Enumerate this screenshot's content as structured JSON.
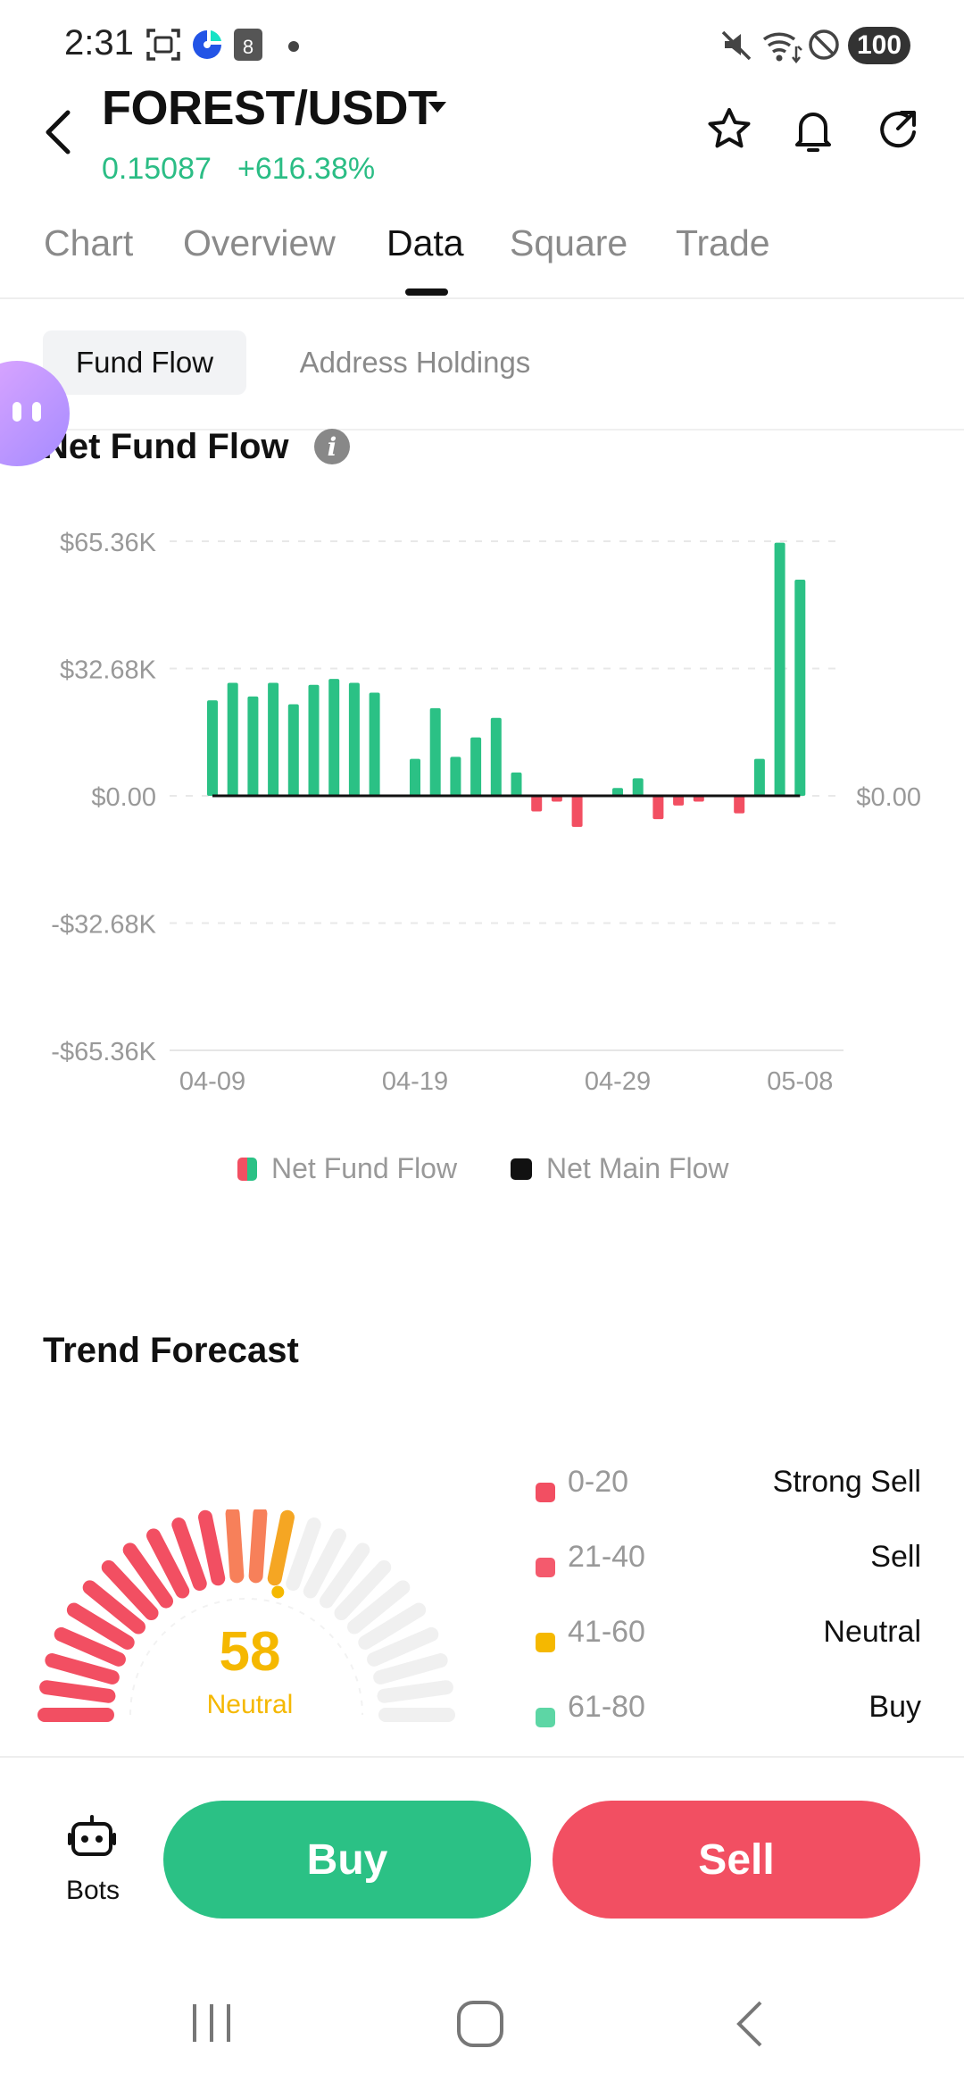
{
  "status_bar": {
    "time": "2:31",
    "battery": "100",
    "calendar_badge": "8"
  },
  "header": {
    "pair": "FOREST/USDT",
    "price": "0.15087",
    "change": "+616.38%"
  },
  "tabs": [
    {
      "label": "Chart"
    },
    {
      "label": "Overview"
    },
    {
      "label": "Data",
      "active": true
    },
    {
      "label": "Square"
    },
    {
      "label": "Trade"
    }
  ],
  "subtabs": [
    {
      "label": "Fund Flow",
      "active": true
    },
    {
      "label": "Address Holdings"
    }
  ],
  "net_fund_flow": {
    "title": "Net Fund Flow",
    "info_glyph": "i"
  },
  "chart_data": {
    "type": "bar",
    "ylim": [
      -65360,
      65360
    ],
    "y_ticks": [
      "$65.36K",
      "$32.68K",
      "$0.00",
      "-$32.68K",
      "-$65.36K"
    ],
    "right_tick": "$0.00",
    "x_ticks": [
      "04-09",
      "04-19",
      "04-29",
      "05-08"
    ],
    "x": [
      "04-09",
      "04-10",
      "04-11",
      "04-12",
      "04-13",
      "04-14",
      "04-15",
      "04-16",
      "04-17",
      "04-18",
      "04-19",
      "04-20",
      "04-21",
      "04-22",
      "04-23",
      "04-24",
      "04-25",
      "04-26",
      "04-27",
      "04-28",
      "04-29",
      "04-30",
      "05-01",
      "05-02",
      "05-03",
      "05-04",
      "05-05",
      "05-06",
      "05-07",
      "05-08"
    ],
    "series": [
      {
        "name": "Net Fund Flow",
        "values": [
          24500,
          29000,
          25500,
          29000,
          23500,
          28500,
          30000,
          29000,
          26500,
          0,
          9500,
          22500,
          10000,
          15000,
          20000,
          6000,
          -4000,
          -1500,
          -8000,
          0,
          2000,
          4500,
          -6000,
          -2500,
          -1500,
          0,
          -4500,
          9500,
          65000,
          55500
        ]
      },
      {
        "name": "Net Main Flow",
        "values": [
          0,
          0,
          0,
          0,
          0,
          0,
          0,
          0,
          0,
          0,
          0,
          0,
          0,
          0,
          0,
          0,
          0,
          0,
          0,
          0,
          0,
          0,
          0,
          0,
          0,
          0,
          0,
          0,
          0,
          0
        ]
      }
    ],
    "colors": {
      "positive": "#2bc185",
      "negative": "#f24f62",
      "main": "#111111"
    },
    "grid": true,
    "legend_position": "bottom-center"
  },
  "trend": {
    "title": "Trend Forecast",
    "score": 58,
    "score_max": 100,
    "rating": "Neutral",
    "ranges": [
      {
        "range": "0-20",
        "label": "Strong Sell",
        "color": "#f24f62"
      },
      {
        "range": "21-40",
        "label": "Sell",
        "color": "#f45a6d"
      },
      {
        "range": "41-60",
        "label": "Neutral",
        "color": "#f5b800"
      },
      {
        "range": "61-80",
        "label": "Buy",
        "color": "#5dd6a5"
      }
    ]
  },
  "actions": {
    "bots": "Bots",
    "buy": "Buy",
    "sell": "Sell"
  },
  "icons": [
    "back-icon",
    "star-icon",
    "bell-icon",
    "share-icon",
    "robot-icon",
    "recent-apps-icon",
    "home-icon",
    "nav-back-icon"
  ]
}
